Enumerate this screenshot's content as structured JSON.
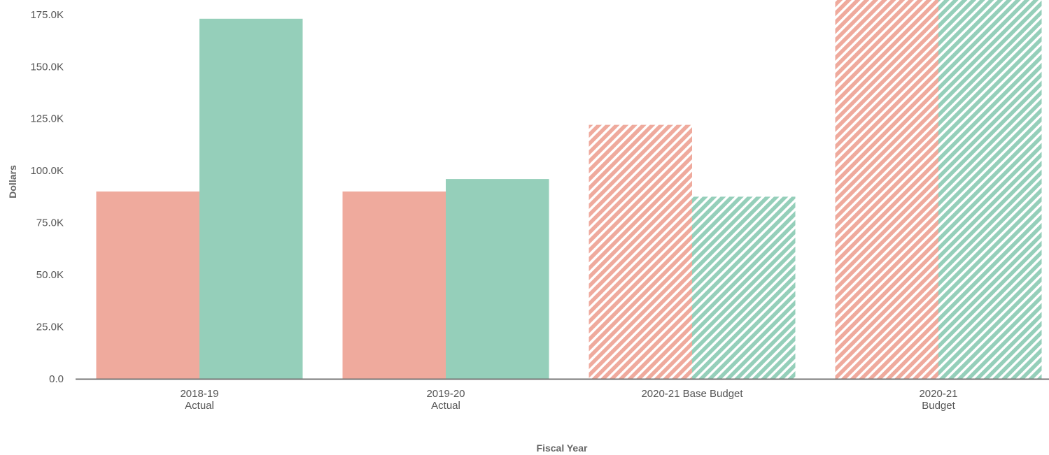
{
  "chart_data": {
    "type": "bar",
    "title": "",
    "xlabel": "Fiscal Year",
    "ylabel": "Dollars",
    "ylim": [
      0,
      180000
    ],
    "yticks": [
      {
        "value": 0,
        "label": "0.0"
      },
      {
        "value": 25000,
        "label": "25.0K"
      },
      {
        "value": 50000,
        "label": "50.0K"
      },
      {
        "value": 75000,
        "label": "75.0K"
      },
      {
        "value": 100000,
        "label": "100.0K"
      },
      {
        "value": 125000,
        "label": "125.0K"
      },
      {
        "value": 150000,
        "label": "150.0K"
      },
      {
        "value": 175000,
        "label": "175.0K"
      }
    ],
    "categories": [
      {
        "lines": [
          "2018-19",
          "Actual"
        ],
        "hatched": false
      },
      {
        "lines": [
          "2019-20",
          "Actual"
        ],
        "hatched": false
      },
      {
        "lines": [
          "2020-21 Base Budget"
        ],
        "hatched": true
      },
      {
        "lines": [
          "2020-21",
          "Budget"
        ],
        "hatched": true
      }
    ],
    "series": [
      {
        "color": "#efaa9d",
        "values": [
          90000,
          90000,
          122000,
          185000
        ]
      },
      {
        "color": "#95cfba",
        "values": [
          173000,
          96000,
          87500,
          185000
        ]
      }
    ],
    "grid": false,
    "legend": "none"
  }
}
